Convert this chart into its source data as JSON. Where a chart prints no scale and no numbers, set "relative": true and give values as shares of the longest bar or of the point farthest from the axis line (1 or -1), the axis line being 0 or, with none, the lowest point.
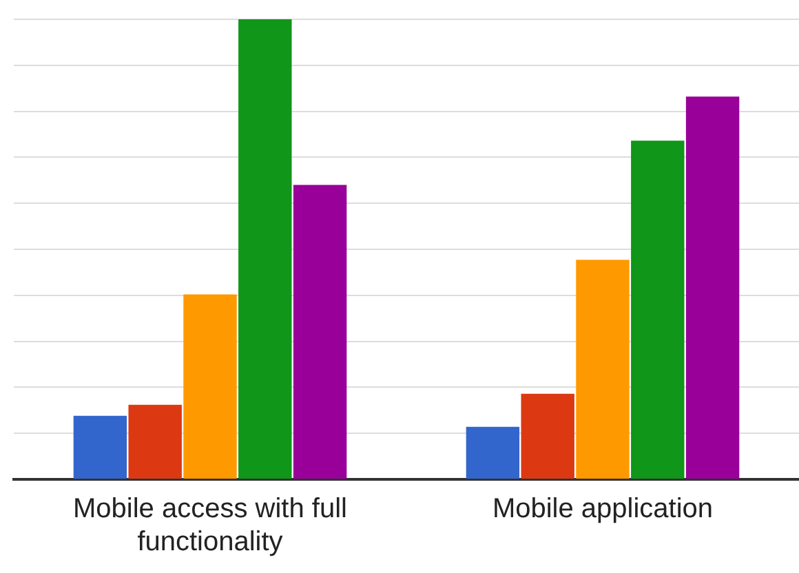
{
  "chart_data": {
    "type": "bar",
    "relative": true,
    "grid": "y",
    "categories": [
      "Mobile access with full functionality",
      "Mobile application"
    ],
    "series": [
      {
        "color": "#3366cc",
        "values": [
          0.138,
          0.114
        ]
      },
      {
        "color": "#dc3912",
        "values": [
          0.162,
          0.186
        ]
      },
      {
        "color": "#ff9900",
        "values": [
          0.402,
          0.477
        ]
      },
      {
        "color": "#109618",
        "values": [
          1,
          0.736
        ]
      },
      {
        "color": "#990099",
        "values": [
          0.64,
          0.832
        ]
      }
    ]
  }
}
